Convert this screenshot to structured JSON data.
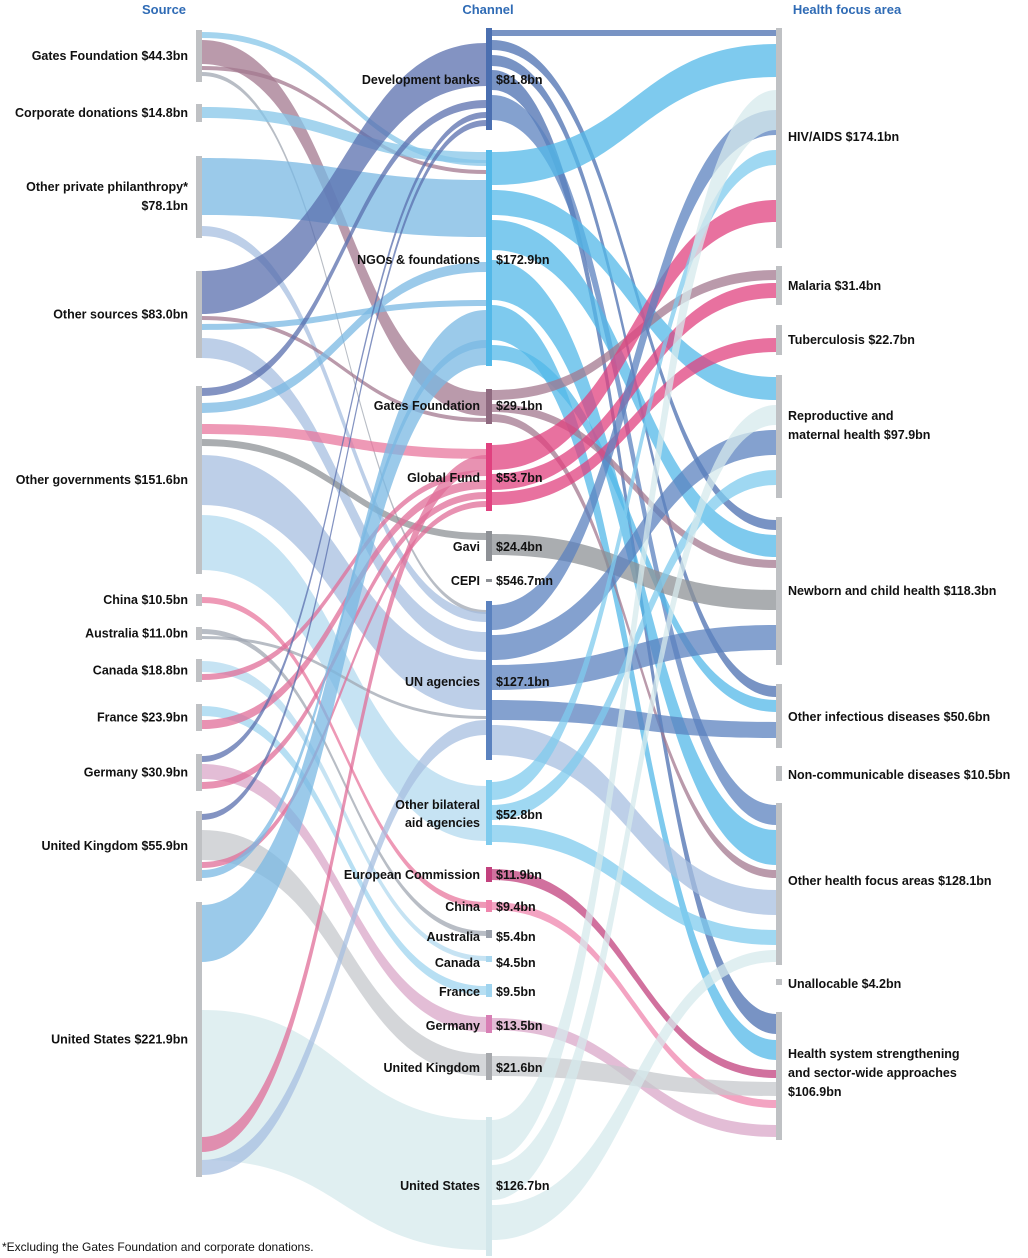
{
  "headers": {
    "source": "Source",
    "channel": "Channel",
    "focus": "Health focus area"
  },
  "footnote": "*Excluding the Gates Foundation and corporate donations.",
  "colors": {
    "gates": "#a3788f",
    "corporate": "#86c5e8",
    "private": "#79b8e3",
    "other_sources": "#5a6fae",
    "other_gov": "#a7bfe0",
    "china": "#e8779e",
    "australia": "#a0a7b2",
    "canada": "#b3d9ef",
    "france": "#e06d98",
    "germany": "#d9a7c8",
    "uk": "#c6c8cc",
    "us": "#d6e9ec",
    "node_gray": "#bfc1c4",
    "dev_banks": "#4b6fb0",
    "ngos": "#53b8e8",
    "gates_ch": "#8f6a80",
    "global_fund": "#e0417f",
    "gavi": "#8e9196",
    "un": "#5b82bf",
    "bilateral": "#7fcbee",
    "ec": "#c2417e",
    "ch_china": "#ef86ad",
    "ch_australia": "#9aa0aa",
    "ch_canada": "#a8d6ee",
    "ch_france": "#9fd4ef",
    "ch_germany": "#d87fb5",
    "ch_uk": "#a7a9ad",
    "ch_us": "#d3e7eb"
  },
  "sources": [
    {
      "id": "gates",
      "name": "Gates Foundation",
      "value": "$44.3bn"
    },
    {
      "id": "corporate",
      "name": "Corporate donations",
      "value": "$14.8bn"
    },
    {
      "id": "private",
      "name": "Other private philanthropy*",
      "value": "$78.1bn"
    },
    {
      "id": "other_sources",
      "name": "Other sources",
      "value": "$83.0bn"
    },
    {
      "id": "other_gov",
      "name": "Other governments",
      "value": "$151.6bn"
    },
    {
      "id": "china",
      "name": "China",
      "value": "$10.5bn"
    },
    {
      "id": "australia",
      "name": "Australia",
      "value": "$11.0bn"
    },
    {
      "id": "canada",
      "name": "Canada",
      "value": "$18.8bn"
    },
    {
      "id": "france",
      "name": "France",
      "value": "$23.9bn"
    },
    {
      "id": "germany",
      "name": "Germany",
      "value": "$30.9bn"
    },
    {
      "id": "uk",
      "name": "United Kingdom",
      "value": "$55.9bn"
    },
    {
      "id": "us",
      "name": "United States",
      "value": "$221.9bn"
    }
  ],
  "channels": [
    {
      "id": "dev_banks",
      "name": "Development banks",
      "value": "$81.8bn"
    },
    {
      "id": "ngos",
      "name": "NGOs & foundations",
      "value": "$172.9bn"
    },
    {
      "id": "gates_ch",
      "name": "Gates Foundation",
      "value": "$29.1bn"
    },
    {
      "id": "global_fund",
      "name": "Global Fund",
      "value": "$53.7bn"
    },
    {
      "id": "gavi",
      "name": "Gavi",
      "value": "$24.4bn"
    },
    {
      "id": "cepi",
      "name": "CEPI",
      "value": "$546.7mn"
    },
    {
      "id": "un",
      "name": "UN agencies",
      "value": "$127.1bn"
    },
    {
      "id": "bilateral",
      "name": "Other bilateral aid agencies",
      "value": "$52.8bn"
    },
    {
      "id": "ec",
      "name": "European Commission",
      "value": "$11.9bn"
    },
    {
      "id": "ch_china",
      "name": "China",
      "value": "$9.4bn"
    },
    {
      "id": "ch_australia",
      "name": "Australia",
      "value": "$5.4bn"
    },
    {
      "id": "ch_canada",
      "name": "Canada",
      "value": "$4.5bn"
    },
    {
      "id": "ch_france",
      "name": "France",
      "value": "$9.5bn"
    },
    {
      "id": "ch_germany",
      "name": "Germany",
      "value": "$13.5bn"
    },
    {
      "id": "ch_uk",
      "name": "United Kingdom",
      "value": "$21.6bn"
    },
    {
      "id": "ch_us",
      "name": "United States",
      "value": "$126.7bn"
    }
  ],
  "focus_areas": [
    {
      "id": "hiv",
      "name": "HIV/AIDS",
      "value": "$174.1bn"
    },
    {
      "id": "malaria",
      "name": "Malaria",
      "value": "$31.4bn"
    },
    {
      "id": "tb",
      "name": "Tuberculosis",
      "value": "$22.7bn"
    },
    {
      "id": "rmh",
      "name": "Reproductive and maternal health",
      "value": "$97.9bn"
    },
    {
      "id": "nch",
      "name": "Newborn and child health",
      "value": "$118.3bn"
    },
    {
      "id": "oid",
      "name": "Other infectious diseases",
      "value": "$50.6bn"
    },
    {
      "id": "ncd",
      "name": "Non-communicable diseases",
      "value": "$10.5bn"
    },
    {
      "id": "ohfa",
      "name": "Other health focus areas",
      "value": "$128.1bn"
    },
    {
      "id": "unalloc",
      "name": "Unallocable",
      "value": "$4.2bn"
    },
    {
      "id": "hss",
      "name": "Health system strengthening and sector-wide approaches",
      "value": "$106.9bn"
    }
  ]
}
